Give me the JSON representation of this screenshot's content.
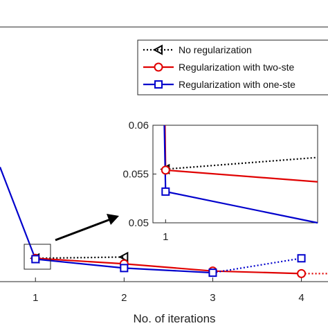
{
  "chart_data": {
    "type": "line",
    "xlabel": "No. of iterations",
    "ylabel": "",
    "main_axes": {
      "x_ticks": [
        "1",
        "2",
        "3",
        "4"
      ],
      "x_tick_values": [
        1,
        2,
        3,
        4
      ],
      "xlim": [
        0.6,
        4.3
      ],
      "ylim": [
        0.05,
        0.11
      ],
      "y_ticks_visible": false
    },
    "series": [
      {
        "name": "No regularization",
        "color": "#000000",
        "marker": "left-triangle",
        "line_style": "dotted",
        "x": [
          1,
          2
        ],
        "y": [
          0.0555,
          0.0558
        ]
      },
      {
        "name": "Regularization with two-ste",
        "color": "#e00000",
        "marker": "circle",
        "line_style": "solid",
        "x": [
          1,
          2,
          3,
          4
        ],
        "y": [
          0.0555,
          0.0542,
          0.0525,
          0.0519
        ],
        "dotted_extension": {
          "x": [
            4,
            4.3
          ],
          "y": [
            0.0519,
            0.0519
          ]
        }
      },
      {
        "name": "Regularization with one-ste",
        "color": "#0000cc",
        "marker": "square",
        "line_style": "solid",
        "x": [
          0.6,
          1,
          2,
          3
        ],
        "y": [
          0.077,
          0.0553,
          0.0532,
          0.0521
        ],
        "dotted_extension": {
          "x": [
            3,
            4
          ],
          "y": [
            0.0521,
            0.0555
          ]
        }
      }
    ],
    "inset": {
      "x_ticks": [
        "1"
      ],
      "y_ticks": [
        "0.06",
        "0.055",
        "0.05"
      ],
      "y_tick_values": [
        0.06,
        0.055,
        0.05
      ],
      "xlim": [
        0.9,
        2.2
      ],
      "ylim": [
        0.05,
        0.06
      ],
      "series": [
        {
          "name": "No regularization",
          "x": [
            1,
            2.2
          ],
          "y": [
            0.0555,
            0.0567
          ]
        },
        {
          "name": "Regularization with two-ste",
          "x": [
            0.995,
            1,
            2.2
          ],
          "y": [
            0.06,
            0.0554,
            0.0542
          ]
        },
        {
          "name": "Regularization with one-ste",
          "x": [
            0.99,
            1,
            2.2
          ],
          "y": [
            0.06,
            0.0532,
            0.05
          ]
        }
      ]
    },
    "legend": "top-right",
    "grid": false
  }
}
